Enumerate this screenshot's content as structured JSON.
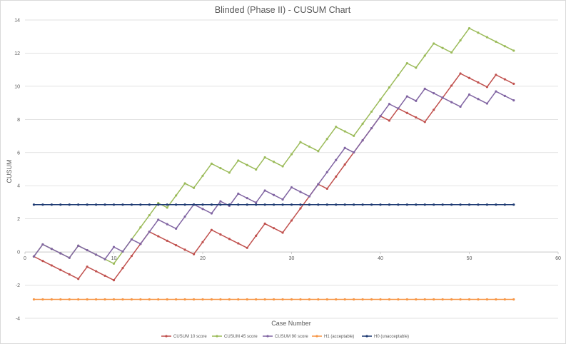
{
  "chart_data": {
    "type": "line",
    "title": "Blinded (Phase II) - CUSUM Chart",
    "xlabel": "Case Number",
    "ylabel": "CUSUM",
    "xlim": [
      0,
      60
    ],
    "ylim": [
      -4,
      14
    ],
    "x_ticks": [
      "0",
      "10",
      "20",
      "30",
      "40",
      "50",
      "60"
    ],
    "y_ticks": [
      "-4",
      "-2",
      "0",
      "2",
      "4",
      "6",
      "8",
      "10",
      "12",
      "14"
    ],
    "grid": "horizontal",
    "legend_position": "bottom",
    "series": [
      {
        "name": "CUSUM 10 score",
        "color": "#c0504d",
        "x": [
          1,
          2,
          3,
          4,
          5,
          6,
          7,
          8,
          9,
          10,
          11,
          12,
          13,
          14,
          15,
          16,
          17,
          18,
          19,
          20,
          21,
          22,
          23,
          24,
          25,
          26,
          27,
          28,
          29,
          30,
          31,
          32,
          33,
          34,
          35,
          36,
          37,
          38,
          39,
          40,
          41,
          42,
          43,
          44,
          45,
          46,
          47,
          48,
          49,
          50,
          51,
          52,
          53,
          54,
          55
        ],
        "values": [
          -0.27,
          -0.54,
          -0.81,
          -1.08,
          -1.35,
          -1.62,
          -0.89,
          -1.16,
          -1.43,
          -1.7,
          -0.97,
          -0.24,
          0.49,
          1.22,
          0.95,
          0.68,
          0.41,
          0.14,
          -0.13,
          0.6,
          1.33,
          1.06,
          0.79,
          0.52,
          0.25,
          0.98,
          1.71,
          1.44,
          1.17,
          1.9,
          2.63,
          3.36,
          4.09,
          3.82,
          4.55,
          5.28,
          6.01,
          6.74,
          7.47,
          8.2,
          7.93,
          8.66,
          8.39,
          8.12,
          7.85,
          8.58,
          9.31,
          10.04,
          10.77,
          10.5,
          10.23,
          9.96,
          10.69,
          10.42,
          10.15
        ]
      },
      {
        "name": "CUSUM 45 score",
        "color": "#9bbb59",
        "x": [
          1,
          2,
          3,
          4,
          5,
          6,
          7,
          8,
          9,
          10,
          11,
          12,
          13,
          14,
          15,
          16,
          17,
          18,
          19,
          20,
          21,
          22,
          23,
          24,
          25,
          26,
          27,
          28,
          29,
          30,
          31,
          32,
          33,
          34,
          35,
          36,
          37,
          38,
          39,
          40,
          41,
          42,
          43,
          44,
          45,
          46,
          47,
          48,
          49,
          50,
          51,
          52,
          53,
          54,
          55
        ],
        "values": [
          -0.27,
          0.46,
          0.19,
          -0.08,
          -0.35,
          0.38,
          0.11,
          -0.16,
          -0.43,
          -0.7,
          0.03,
          0.76,
          1.49,
          2.22,
          2.95,
          2.68,
          3.41,
          4.14,
          3.87,
          4.6,
          5.33,
          5.06,
          4.79,
          5.52,
          5.25,
          4.98,
          5.71,
          5.44,
          5.17,
          5.9,
          6.63,
          6.36,
          6.09,
          6.82,
          7.55,
          7.28,
          7.01,
          7.74,
          8.47,
          9.2,
          9.93,
          10.66,
          11.39,
          11.12,
          11.85,
          12.58,
          12.31,
          12.04,
          12.77,
          13.5,
          13.23,
          12.96,
          12.69,
          12.42,
          12.15
        ]
      },
      {
        "name": "CUSUM 90 score",
        "color": "#8064a2",
        "x": [
          1,
          2,
          3,
          4,
          5,
          6,
          7,
          8,
          9,
          10,
          11,
          12,
          13,
          14,
          15,
          16,
          17,
          18,
          19,
          20,
          21,
          22,
          23,
          24,
          25,
          26,
          27,
          28,
          29,
          30,
          31,
          32,
          33,
          34,
          35,
          36,
          37,
          38,
          39,
          40,
          41,
          42,
          43,
          44,
          45,
          46,
          47,
          48,
          49,
          50,
          51,
          52,
          53,
          54,
          55
        ],
        "values": [
          -0.27,
          0.46,
          0.19,
          -0.08,
          -0.35,
          0.38,
          0.11,
          -0.16,
          -0.43,
          0.3,
          0.03,
          0.76,
          0.49,
          1.22,
          1.95,
          1.68,
          1.41,
          2.14,
          2.87,
          2.6,
          2.33,
          3.06,
          2.79,
          3.52,
          3.25,
          2.98,
          3.71,
          3.44,
          3.17,
          3.9,
          3.63,
          3.36,
          4.09,
          4.82,
          5.55,
          6.28,
          6.01,
          6.74,
          7.47,
          8.2,
          8.93,
          8.66,
          9.39,
          9.12,
          9.85,
          9.58,
          9.31,
          9.04,
          8.77,
          9.5,
          9.23,
          8.96,
          9.69,
          9.42,
          9.15
        ]
      },
      {
        "name": "H1 (acceptable)",
        "color": "#f79646",
        "x": [
          1,
          2,
          3,
          4,
          5,
          6,
          7,
          8,
          9,
          10,
          11,
          12,
          13,
          14,
          15,
          16,
          17,
          18,
          19,
          20,
          21,
          22,
          23,
          24,
          25,
          26,
          27,
          28,
          29,
          30,
          31,
          32,
          33,
          34,
          35,
          36,
          37,
          38,
          39,
          40,
          41,
          42,
          43,
          44,
          45,
          46,
          47,
          48,
          49,
          50,
          51,
          52,
          53,
          54,
          55
        ],
        "values": [
          -2.86,
          -2.86,
          -2.86,
          -2.86,
          -2.86,
          -2.86,
          -2.86,
          -2.86,
          -2.86,
          -2.86,
          -2.86,
          -2.86,
          -2.86,
          -2.86,
          -2.86,
          -2.86,
          -2.86,
          -2.86,
          -2.86,
          -2.86,
          -2.86,
          -2.86,
          -2.86,
          -2.86,
          -2.86,
          -2.86,
          -2.86,
          -2.86,
          -2.86,
          -2.86,
          -2.86,
          -2.86,
          -2.86,
          -2.86,
          -2.86,
          -2.86,
          -2.86,
          -2.86,
          -2.86,
          -2.86,
          -2.86,
          -2.86,
          -2.86,
          -2.86,
          -2.86,
          -2.86,
          -2.86,
          -2.86,
          -2.86,
          -2.86,
          -2.86,
          -2.86,
          -2.86,
          -2.86,
          -2.86
        ]
      },
      {
        "name": "H0 (unacceptable)",
        "color": "#1f3b73",
        "x": [
          1,
          2,
          3,
          4,
          5,
          6,
          7,
          8,
          9,
          10,
          11,
          12,
          13,
          14,
          15,
          16,
          17,
          18,
          19,
          20,
          21,
          22,
          23,
          24,
          25,
          26,
          27,
          28,
          29,
          30,
          31,
          32,
          33,
          34,
          35,
          36,
          37,
          38,
          39,
          40,
          41,
          42,
          43,
          44,
          45,
          46,
          47,
          48,
          49,
          50,
          51,
          52,
          53,
          54,
          55
        ],
        "values": [
          2.86,
          2.86,
          2.86,
          2.86,
          2.86,
          2.86,
          2.86,
          2.86,
          2.86,
          2.86,
          2.86,
          2.86,
          2.86,
          2.86,
          2.86,
          2.86,
          2.86,
          2.86,
          2.86,
          2.86,
          2.86,
          2.86,
          2.86,
          2.86,
          2.86,
          2.86,
          2.86,
          2.86,
          2.86,
          2.86,
          2.86,
          2.86,
          2.86,
          2.86,
          2.86,
          2.86,
          2.86,
          2.86,
          2.86,
          2.86,
          2.86,
          2.86,
          2.86,
          2.86,
          2.86,
          2.86,
          2.86,
          2.86,
          2.86,
          2.86,
          2.86,
          2.86,
          2.86,
          2.86,
          2.86
        ]
      }
    ]
  }
}
